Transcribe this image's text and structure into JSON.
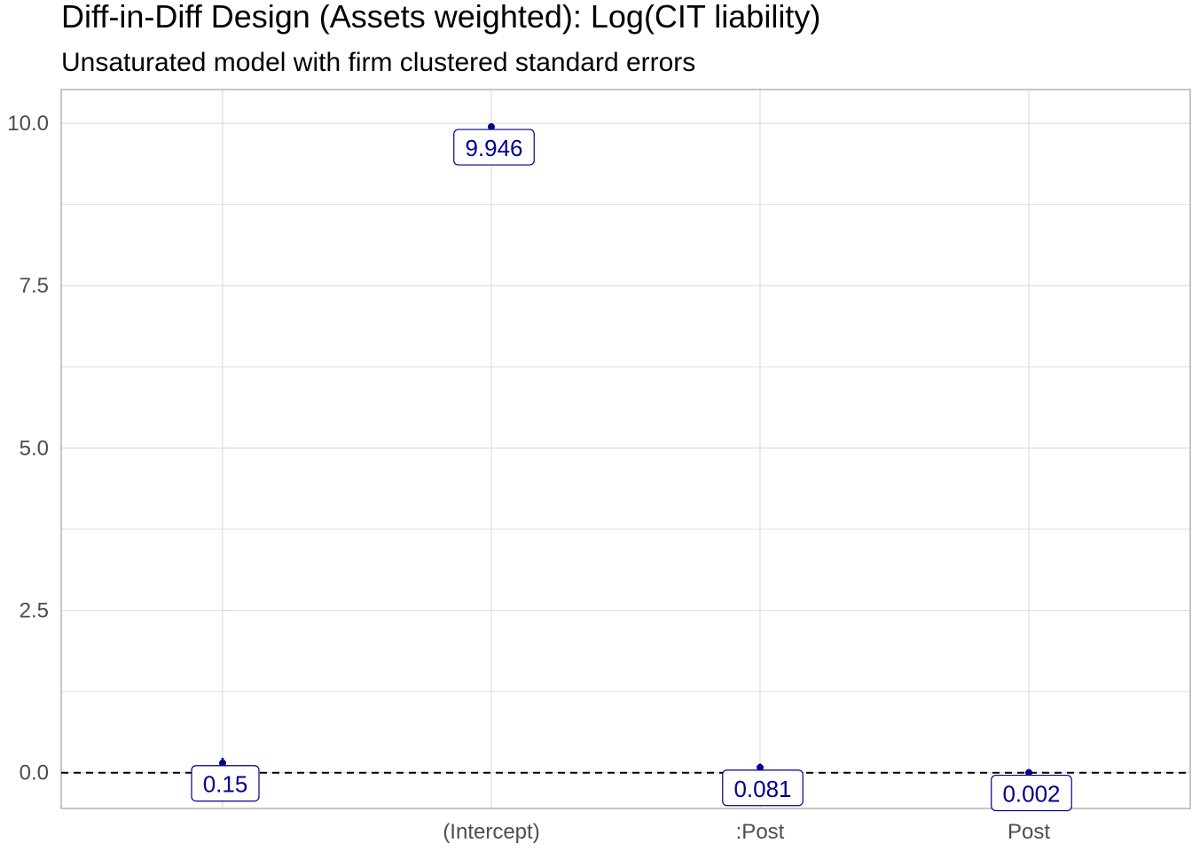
{
  "chart_data": {
    "type": "scatter",
    "title": "Diff-in-Diff Design (Assets weighted): Log(CIT liability)",
    "subtitle": "Unsaturated model with firm clustered standard errors",
    "xlabel": "",
    "ylabel": "",
    "categories": [
      "",
      "(Intercept)",
      ":Post",
      "Post"
    ],
    "values": [
      0.15,
      9.946,
      0.081,
      0.002
    ],
    "labels": [
      "0.15",
      "9.946",
      "0.081",
      "0.002"
    ],
    "ci_low": [
      0.09,
      9.91,
      0.03,
      -0.01
    ],
    "ci_high": [
      0.23,
      9.98,
      0.14,
      0.02
    ],
    "ylim": [
      -0.55,
      10.52
    ],
    "yticks": [
      0.0,
      2.5,
      5.0,
      7.5,
      10.0
    ],
    "ytick_labels": [
      "0.0",
      "2.5",
      "5.0",
      "7.5",
      "10.0"
    ],
    "reference_line": 0,
    "grid": true,
    "legend": "none",
    "colors": {
      "point": "#00008b",
      "label": "#00008b",
      "grid": "#dedede",
      "reference": "#000000"
    }
  }
}
